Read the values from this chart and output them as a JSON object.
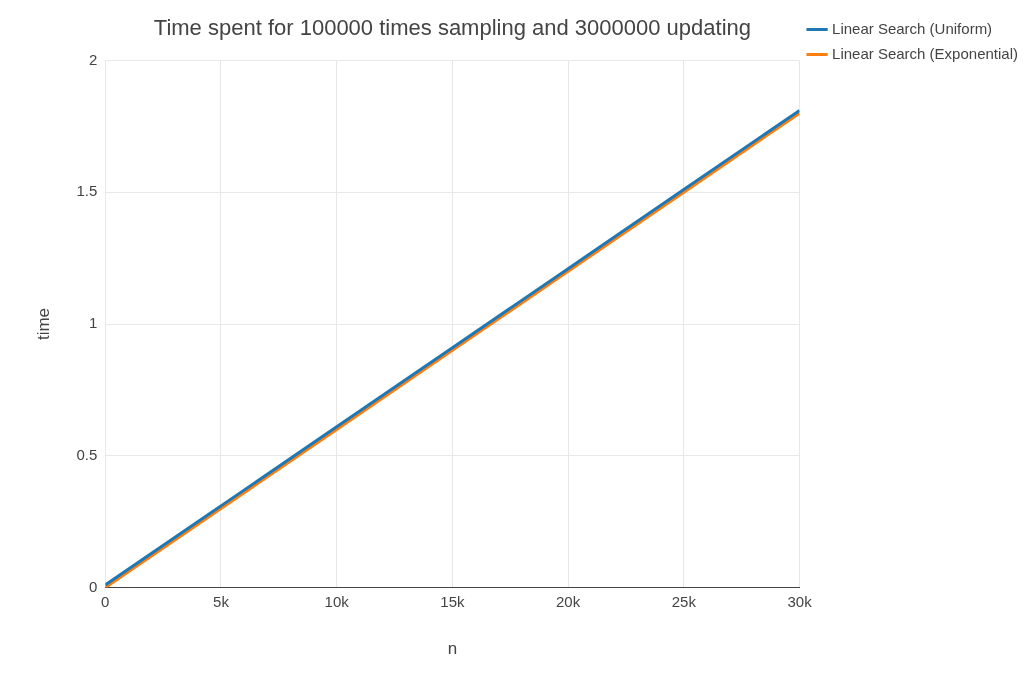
{
  "chart_data": {
    "type": "line",
    "title": "Time spent for 100000 times sampling and 3000000 updating",
    "xlabel": "n",
    "ylabel": "time",
    "x": [
      0,
      5000,
      10000,
      15000,
      20000,
      25000,
      30000
    ],
    "series": [
      {
        "name": "Linear Search (Uniform)",
        "color": "#1f77b4",
        "values": [
          0.01,
          0.31,
          0.61,
          0.91,
          1.21,
          1.51,
          1.81
        ]
      },
      {
        "name": "Linear Search (Exponential)",
        "color": "#ff7f0e",
        "values": [
          0.0,
          0.3,
          0.6,
          0.9,
          1.2,
          1.5,
          1.8
        ]
      }
    ],
    "xlim": [
      0,
      30000
    ],
    "xticks": [
      0,
      {
        "value": 5000,
        "label": "5k"
      },
      {
        "value": 10000,
        "label": "10k"
      },
      {
        "value": 15000,
        "label": "15k"
      },
      {
        "value": 20000,
        "label": "20k"
      },
      {
        "value": 25000,
        "label": "25k"
      },
      {
        "value": 30000,
        "label": "30k"
      }
    ],
    "ylim": [
      0,
      2
    ],
    "yticks": [
      0,
      0.5,
      1,
      1.5,
      2
    ],
    "grid": true,
    "legend": "top right",
    "marker": "none",
    "line_style": "solid"
  }
}
